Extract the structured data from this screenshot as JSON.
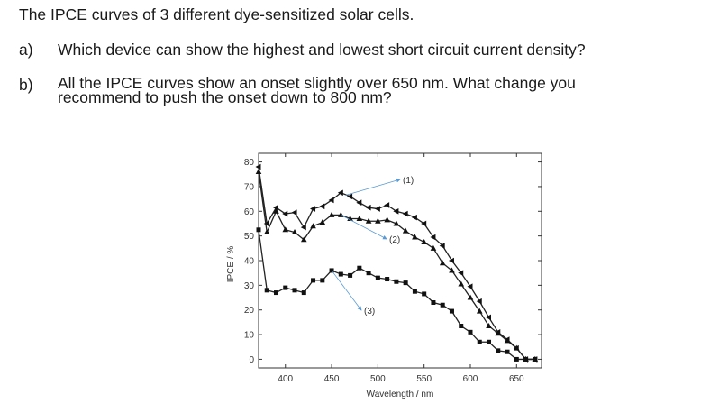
{
  "title": "The IPCE curves of 3 different dye-sensitized solar cells.",
  "questions": [
    {
      "label": "a)",
      "text": "Which device can show the highest and lowest short circuit current density?"
    },
    {
      "label": "b)",
      "text": "All the IPCE curves show an onset slightly over 650 nm. What change you",
      "text2": "recommend to push the onset down to 800 nm?"
    }
  ],
  "chart_data": {
    "type": "line",
    "xlabel": "Wavelength / nm",
    "ylabel": "IPCE / %",
    "xlim": [
      371,
      677
    ],
    "ylim": [
      -3.5,
      83.5
    ],
    "xticks": [
      400,
      450,
      500,
      550,
      600,
      650
    ],
    "yticks": [
      0,
      10,
      20,
      30,
      40,
      50,
      60,
      70,
      80
    ],
    "grid": false,
    "x": [
      370,
      380,
      390,
      400,
      410,
      420,
      430,
      440,
      450,
      460,
      470,
      480,
      490,
      500,
      510,
      520,
      530,
      540,
      550,
      560,
      570,
      580,
      590,
      600,
      610,
      620,
      630,
      640,
      650,
      660,
      670
    ],
    "series": [
      {
        "name": "(1)",
        "marker": "left-triangle",
        "values": [
          78,
          55,
          61.5,
          59,
          59.5,
          53.5,
          61,
          62,
          64.5,
          67.5,
          66,
          63.5,
          61.5,
          61,
          62.5,
          60,
          59,
          57.5,
          55,
          49.5,
          46,
          40,
          35,
          29.5,
          23.5,
          17,
          11,
          8,
          4.5,
          0,
          0
        ]
      },
      {
        "name": "(2)",
        "marker": "triangle",
        "values": [
          76,
          51.5,
          60,
          52.5,
          51.5,
          48.5,
          54,
          55.5,
          58.5,
          58.5,
          57,
          57,
          56,
          56,
          56.5,
          55,
          52,
          49.5,
          47.5,
          45,
          39,
          36,
          30.5,
          25,
          19.5,
          13.5,
          10.5,
          7.5,
          4.5,
          0,
          0
        ]
      },
      {
        "name": "(3)",
        "marker": "square",
        "values": [
          52.5,
          28,
          27,
          29,
          28,
          27,
          32,
          32,
          36,
          34.5,
          34,
          37,
          35,
          33,
          32.5,
          31.5,
          31,
          27.5,
          26.5,
          23,
          22,
          19.5,
          13.5,
          11,
          7,
          7,
          3.5,
          3,
          0,
          0,
          0
        ]
      }
    ],
    "annotations": [
      {
        "text": "(1)",
        "points_to": [
          465,
          66.5
        ]
      },
      {
        "text": "(2)",
        "points_to": [
          460,
          58.5
        ]
      },
      {
        "text": "(3)",
        "points_to": [
          450,
          36
        ]
      }
    ],
    "annotation_color": "#5b9bd5"
  }
}
